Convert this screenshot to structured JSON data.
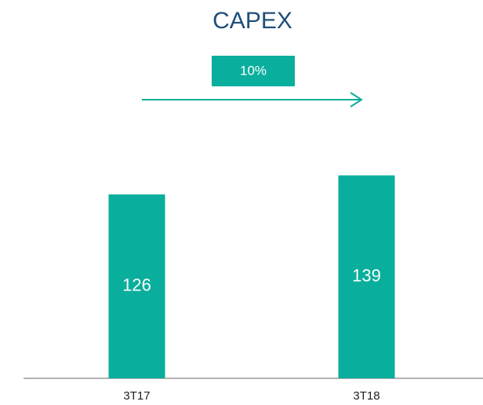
{
  "chart_data": {
    "type": "bar",
    "title": "CAPEX",
    "annotation": "10%",
    "categories": [
      "3T17",
      "3T18"
    ],
    "values": [
      126,
      139
    ],
    "color": "#0aae9c",
    "ylim": [
      0,
      150
    ]
  }
}
